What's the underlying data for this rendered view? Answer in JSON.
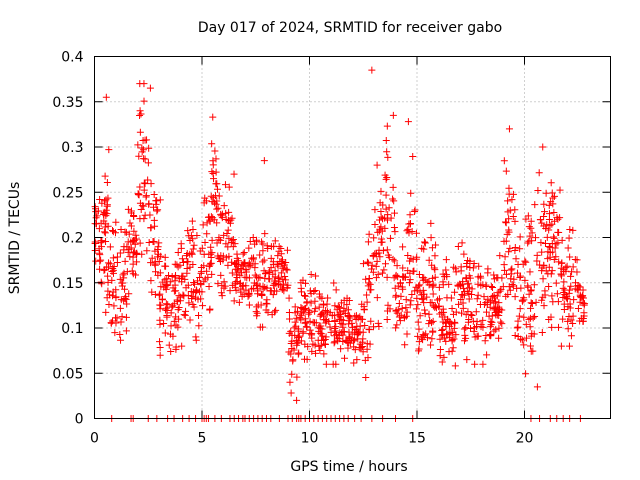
{
  "chart_data": {
    "type": "scatter",
    "title": "Day 017 of 2024, SRMTID for receiver gabo",
    "xlabel": "GPS time / hours",
    "ylabel": "SRMTID / TECUs",
    "xlim": [
      0,
      24
    ],
    "ylim": [
      0,
      0.4
    ],
    "xticks": [
      0,
      5,
      10,
      15,
      20
    ],
    "xtick_labels": [
      "0",
      "5",
      "10",
      "15",
      "20"
    ],
    "yticks": [
      0,
      0.05,
      0.1,
      0.15,
      0.2,
      0.25,
      0.3,
      0.35,
      0.4
    ],
    "ytick_labels": [
      "0",
      "0.05",
      "0.1",
      "0.15",
      "0.2",
      "0.25",
      "0.3",
      "0.35",
      "0.4"
    ],
    "grid": true,
    "marker": "plus",
    "series": [
      {
        "name": "SRMTID",
        "color": "#ff0000",
        "density_profile": [
          {
            "x_range": [
              0.0,
              0.6
            ],
            "y_range": [
              0.14,
              0.26
            ]
          },
          {
            "x_range": [
              0.4,
              0.7
            ],
            "y_range": [
              0.05,
              0.35
            ]
          },
          {
            "x_range": [
              0.7,
              1.5
            ],
            "y_range": [
              0.07,
              0.24
            ]
          },
          {
            "x_range": [
              1.5,
              2.0
            ],
            "y_range": [
              0.13,
              0.25
            ]
          },
          {
            "x_range": [
              2.0,
              2.6
            ],
            "y_range": [
              0.15,
              0.37
            ]
          },
          {
            "x_range": [
              2.6,
              3.1
            ],
            "y_range": [
              0.1,
              0.3
            ]
          },
          {
            "x_range": [
              3.0,
              4.0
            ],
            "y_range": [
              0.06,
              0.2
            ]
          },
          {
            "x_range": [
              4.0,
              5.0
            ],
            "y_range": [
              0.08,
              0.22
            ]
          },
          {
            "x_range": [
              5.0,
              5.5
            ],
            "y_range": [
              0.1,
              0.27
            ]
          },
          {
            "x_range": [
              5.4,
              5.7
            ],
            "y_range": [
              0.2,
              0.33
            ]
          },
          {
            "x_range": [
              5.7,
              6.5
            ],
            "y_range": [
              0.13,
              0.27
            ]
          },
          {
            "x_range": [
              6.5,
              7.5
            ],
            "y_range": [
              0.12,
              0.2
            ]
          },
          {
            "x_range": [
              7.5,
              8.5
            ],
            "y_range": [
              0.09,
              0.22
            ]
          },
          {
            "x_range": [
              8.5,
              9.0
            ],
            "y_range": [
              0.12,
              0.2
            ]
          },
          {
            "x_range": [
              9.0,
              9.5
            ],
            "y_range": [
              0.02,
              0.16
            ]
          },
          {
            "x_range": [
              9.5,
              10.5
            ],
            "y_range": [
              0.05,
              0.17
            ]
          },
          {
            "x_range": [
              10.5,
              11.5
            ],
            "y_range": [
              0.06,
              0.15
            ]
          },
          {
            "x_range": [
              11.5,
              12.5
            ],
            "y_range": [
              0.06,
              0.14
            ]
          },
          {
            "x_range": [
              12.5,
              13.0
            ],
            "y_range": [
              0.04,
              0.22
            ]
          },
          {
            "x_range": [
              13.0,
              13.5
            ],
            "y_range": [
              0.1,
              0.28
            ]
          },
          {
            "x_range": [
              13.5,
              14.0
            ],
            "y_range": [
              0.1,
              0.33
            ]
          },
          {
            "x_range": [
              14.0,
              14.5
            ],
            "y_range": [
              0.06,
              0.2
            ]
          },
          {
            "x_range": [
              14.5,
              15.0
            ],
            "y_range": [
              0.06,
              0.3
            ]
          },
          {
            "x_range": [
              15.0,
              16.0
            ],
            "y_range": [
              0.06,
              0.22
            ]
          },
          {
            "x_range": [
              16.0,
              17.0
            ],
            "y_range": [
              0.05,
              0.19
            ]
          },
          {
            "x_range": [
              17.0,
              18.0
            ],
            "y_range": [
              0.06,
              0.2
            ]
          },
          {
            "x_range": [
              18.0,
              19.0
            ],
            "y_range": [
              0.06,
              0.18
            ]
          },
          {
            "x_range": [
              19.0,
              19.5
            ],
            "y_range": [
              0.07,
              0.3
            ]
          },
          {
            "x_range": [
              19.5,
              20.5
            ],
            "y_range": [
              0.04,
              0.25
            ]
          },
          {
            "x_range": [
              20.5,
              21.2
            ],
            "y_range": [
              0.08,
              0.3
            ]
          },
          {
            "x_range": [
              21.2,
              21.7
            ],
            "y_range": [
              0.06,
              0.3
            ]
          },
          {
            "x_range": [
              21.7,
              22.5
            ],
            "y_range": [
              0.08,
              0.21
            ]
          },
          {
            "x_range": [
              22.5,
              22.8
            ],
            "y_range": [
              0.1,
              0.16
            ]
          }
        ],
        "outliers": [
          {
            "x": 12.9,
            "y": 0.385
          },
          {
            "x": 2.3,
            "y": 0.37
          },
          {
            "x": 2.6,
            "y": 0.365
          },
          {
            "x": 0.55,
            "y": 0.355
          },
          {
            "x": 5.5,
            "y": 0.333
          },
          {
            "x": 13.9,
            "y": 0.335
          },
          {
            "x": 14.6,
            "y": 0.328
          },
          {
            "x": 19.3,
            "y": 0.32
          },
          {
            "x": 7.9,
            "y": 0.285
          },
          {
            "x": 9.4,
            "y": 0.02
          },
          {
            "x": 20.6,
            "y": 0.035
          }
        ],
        "zero_points_x": [
          0.8,
          1.7,
          1.8,
          2.5,
          2.9,
          3.4,
          3.7,
          4.1,
          4.4,
          4.7,
          5.0,
          5.1,
          5.2,
          5.3,
          5.6,
          5.9,
          6.3,
          6.5,
          6.7,
          6.9,
          7.0,
          7.2,
          7.4,
          7.6,
          7.8,
          8.0,
          8.2,
          8.6,
          9.0,
          9.2,
          9.4,
          9.5,
          9.6,
          9.8,
          10.0,
          10.2,
          10.4,
          10.6,
          10.8,
          11.0,
          11.2,
          11.4,
          11.6,
          11.8,
          12.1,
          12.4,
          12.9,
          13.4,
          14.0,
          14.8,
          20.3,
          20.7,
          21.2,
          21.5,
          21.8,
          22.1,
          22.6
        ]
      }
    ]
  }
}
